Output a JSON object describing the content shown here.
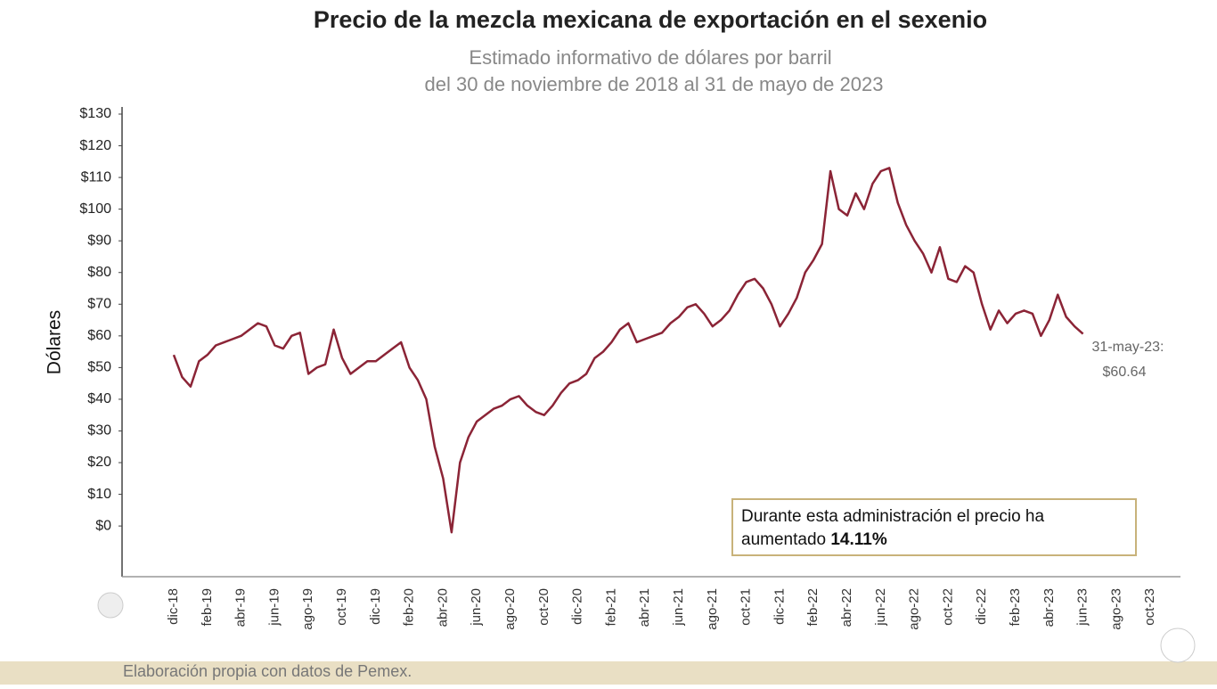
{
  "chart_data": {
    "type": "line",
    "title": "Precio de la mezcla mexicana de exportación en el sexenio",
    "subtitle": [
      "Estimado informativo de dólares por barril",
      "del 30 de noviembre de 2018 al 31 de mayo de 2023"
    ],
    "y_label": "Dólares",
    "categories": [
      "dic-18",
      null,
      null,
      null,
      "feb-19",
      null,
      null,
      null,
      "abr-19",
      null,
      null,
      null,
      "jun-19",
      null,
      null,
      null,
      "ago-19",
      null,
      null,
      null,
      "oct-19",
      null,
      null,
      null,
      "dic-19",
      null,
      null,
      null,
      "feb-20",
      null,
      null,
      null,
      "abr-20",
      null,
      null,
      null,
      "jun-20",
      null,
      null,
      null,
      "ago-20",
      null,
      null,
      null,
      "oct-20",
      null,
      null,
      null,
      "dic-20",
      null,
      null,
      null,
      "feb-21",
      null,
      null,
      null,
      "abr-21",
      null,
      null,
      null,
      "jun-21",
      null,
      null,
      null,
      "ago-21",
      null,
      null,
      null,
      "oct-21",
      null,
      null,
      null,
      "dic-21",
      null,
      null,
      null,
      "feb-22",
      null,
      null,
      null,
      "abr-22",
      null,
      null,
      null,
      "jun-22",
      null,
      null,
      null,
      "ago-22",
      null,
      null,
      null,
      "oct-22",
      null,
      null,
      null,
      "dic-22",
      null,
      null,
      null,
      "feb-23",
      null,
      null,
      null,
      "abr-23",
      null,
      null,
      null,
      "jun-23",
      null,
      null,
      null,
      "ago-23",
      null,
      null,
      null,
      "oct-23"
    ],
    "series": [
      {
        "color": "#8b2436",
        "values": [
          54,
          47,
          44,
          52,
          54,
          57,
          58,
          59,
          60,
          62,
          64,
          63,
          57,
          56,
          60,
          61,
          48,
          50,
          51,
          62,
          53,
          48,
          50,
          52,
          52,
          54,
          56,
          58,
          50,
          46,
          40,
          25,
          15,
          -2,
          20,
          28,
          33,
          35,
          37,
          38,
          40,
          41,
          38,
          36,
          35,
          38,
          42,
          45,
          46,
          48,
          53,
          55,
          58,
          62,
          64,
          58,
          59,
          60,
          61,
          64,
          66,
          69,
          70,
          67,
          63,
          65,
          68,
          73,
          77,
          78,
          75,
          70,
          63,
          67,
          72,
          80,
          84,
          89,
          112,
          100,
          98,
          105,
          100,
          108,
          112,
          113,
          102,
          95,
          90,
          86,
          80,
          88,
          78,
          77,
          82,
          80,
          70,
          62,
          68,
          64,
          67,
          68,
          67,
          60,
          65,
          73,
          66,
          63,
          60.64,
          null,
          null,
          null,
          null,
          null,
          null,
          null,
          null
        ]
      }
    ],
    "ylim": [
      -16,
      130
    ],
    "yticks": [
      {
        "value": 0,
        "label": "$0"
      },
      {
        "value": 10,
        "label": "$10"
      },
      {
        "value": 20,
        "label": "$20"
      },
      {
        "value": 30,
        "label": "$30"
      },
      {
        "value": 40,
        "label": "$40"
      },
      {
        "value": 50,
        "label": "$50"
      },
      {
        "value": 60,
        "label": "$60"
      },
      {
        "value": 70,
        "label": "$70"
      },
      {
        "value": 80,
        "label": "$80"
      },
      {
        "value": 90,
        "label": "$90"
      },
      {
        "value": 100,
        "label": "$100"
      },
      {
        "value": 110,
        "label": "$110"
      },
      {
        "value": 120,
        "label": "$120"
      },
      {
        "value": 130,
        "label": "$130"
      }
    ],
    "end_label": [
      "31-may-23:",
      "$60.64"
    ],
    "note": [
      "Durante esta administración el precio ha",
      "aumentado"
    ],
    "note_highlight": "14.11%",
    "source": "Elaboración propia con datos de Pemex."
  }
}
